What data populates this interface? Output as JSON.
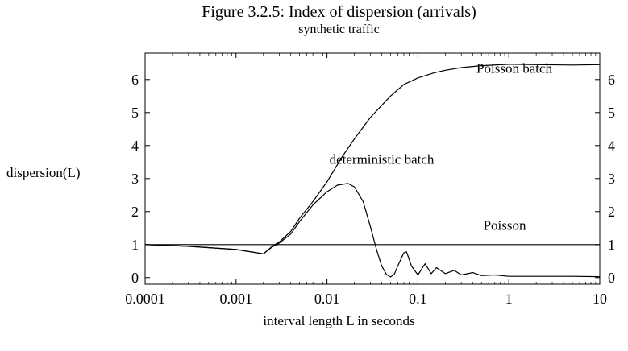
{
  "chart_data": {
    "type": "line",
    "title": "Figure 3.2.5: Index of dispersion (arrivals)",
    "subtitle": "synthetic traffic",
    "xlabel": "interval length L in seconds",
    "ylabel": "dispersion(L)",
    "x_scale": "log",
    "xlim": [
      0.0001,
      10
    ],
    "ylim": [
      -0.2,
      6.8
    ],
    "x_ticks": [
      0.0001,
      0.001,
      0.01,
      0.1,
      1,
      10
    ],
    "x_tick_labels": [
      "0.0001",
      "0.001",
      "0.01",
      "0.1",
      "1",
      "10"
    ],
    "y_ticks": [
      0,
      1,
      2,
      3,
      4,
      5,
      6
    ],
    "y_tick_labels": [
      "0",
      "1",
      "2",
      "3",
      "4",
      "5",
      "6"
    ],
    "grid": false,
    "series": [
      {
        "name": "Poisson batch",
        "x": [
          0.0001,
          0.0003,
          0.001,
          0.002,
          0.0025,
          0.003,
          0.004,
          0.005,
          0.007,
          0.01,
          0.015,
          0.02,
          0.03,
          0.05,
          0.07,
          0.1,
          0.15,
          0.2,
          0.3,
          0.5,
          1,
          2,
          5,
          10
        ],
        "y": [
          1.0,
          0.95,
          0.85,
          0.72,
          0.95,
          1.08,
          1.4,
          1.8,
          2.3,
          2.9,
          3.7,
          4.2,
          4.85,
          5.5,
          5.85,
          6.05,
          6.2,
          6.28,
          6.36,
          6.42,
          6.46,
          6.45,
          6.44,
          6.45
        ]
      },
      {
        "name": "deterministic batch",
        "x": [
          0.0001,
          0.0003,
          0.001,
          0.002,
          0.0025,
          0.003,
          0.004,
          0.005,
          0.007,
          0.01,
          0.013,
          0.017,
          0.02,
          0.025,
          0.03,
          0.035,
          0.04,
          0.045,
          0.05,
          0.055,
          0.06,
          0.07,
          0.075,
          0.085,
          0.1,
          0.12,
          0.14,
          0.16,
          0.2,
          0.25,
          0.3,
          0.4,
          0.5,
          0.7,
          1,
          2,
          5,
          10
        ],
        "y": [
          1.0,
          0.95,
          0.85,
          0.72,
          0.93,
          1.05,
          1.32,
          1.7,
          2.2,
          2.6,
          2.8,
          2.85,
          2.75,
          2.3,
          1.55,
          0.85,
          0.35,
          0.1,
          0.02,
          0.1,
          0.35,
          0.75,
          0.78,
          0.35,
          0.08,
          0.42,
          0.12,
          0.3,
          0.12,
          0.22,
          0.08,
          0.15,
          0.06,
          0.08,
          0.04,
          0.04,
          0.04,
          0.03
        ]
      },
      {
        "name": "Poisson",
        "x": [
          0.0001,
          0.001,
          0.01,
          0.1,
          1,
          10
        ],
        "y": [
          1.0,
          1.0,
          1.0,
          1.0,
          1.0,
          1.0
        ]
      }
    ],
    "annotations": [
      {
        "text": "Poisson batch",
        "x": 1.15,
        "y": 6.2
      },
      {
        "text": "deterministic batch",
        "x": 0.04,
        "y": 3.45
      },
      {
        "text": "Poisson",
        "x": 0.9,
        "y": 1.45
      }
    ]
  }
}
